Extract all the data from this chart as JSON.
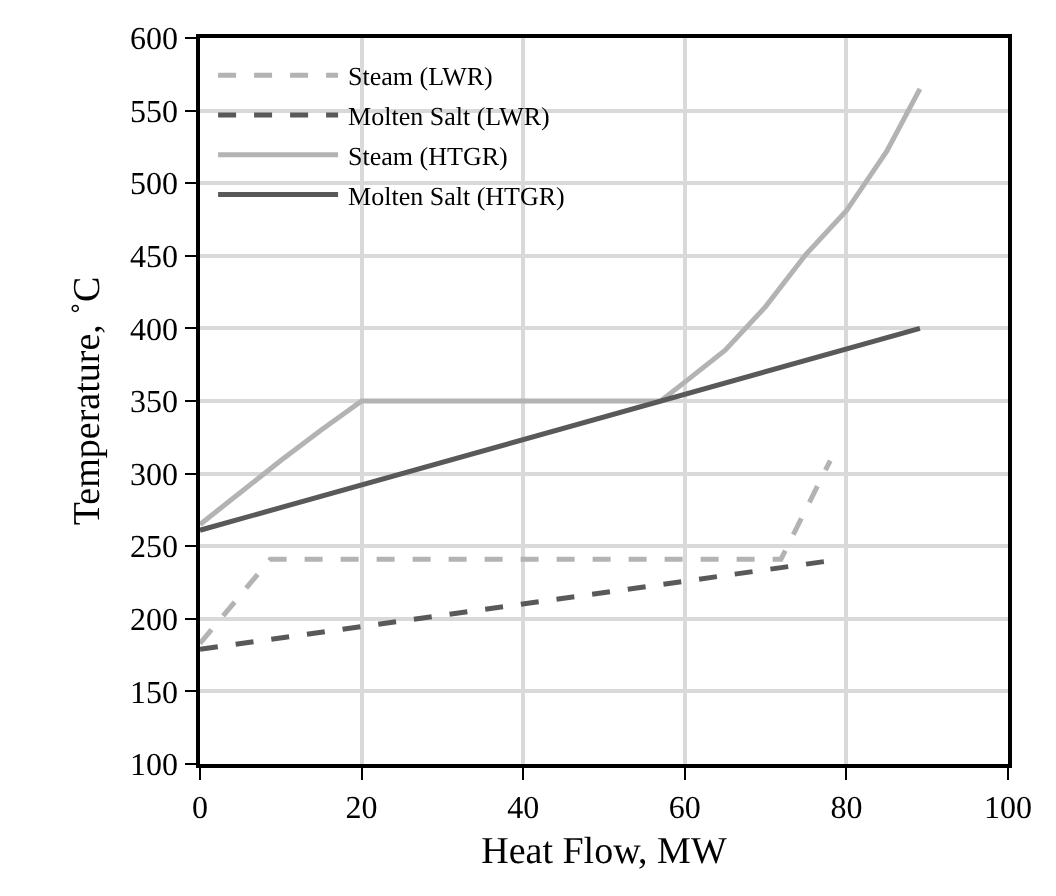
{
  "chart_data": {
    "type": "line",
    "xlabel": "Heat Flow, MW",
    "ylabel": "Temperature, ˚C",
    "xlim": [
      0,
      100
    ],
    "xticks": [
      0,
      20,
      40,
      60,
      80,
      100
    ],
    "ylim": [
      100,
      600
    ],
    "yticks": [
      100,
      150,
      200,
      250,
      300,
      350,
      400,
      450,
      500,
      550,
      600
    ],
    "grid": true,
    "legend": "top left",
    "series": [
      {
        "name": "Steam (LWR)",
        "color": "#b3b3b3",
        "line_style": "dashed",
        "x": [
          0,
          8.7,
          71.9,
          78
        ],
        "values": [
          183,
          241,
          241,
          309
        ]
      },
      {
        "name": "Molten Salt (LWR)",
        "color": "#595959",
        "line_style": "dashed",
        "x": [
          0,
          78
        ],
        "values": [
          179,
          240
        ]
      },
      {
        "name": "Steam (HTGR)",
        "color": "#b3b3b3",
        "line_style": "solid",
        "x": [
          0,
          5,
          10,
          15,
          20,
          40,
          57,
          60,
          65,
          70,
          75,
          80,
          85,
          89.1
        ],
        "values": [
          265,
          287,
          309,
          330,
          350,
          350,
          350,
          363,
          385,
          415,
          451,
          481,
          522,
          565
        ]
      },
      {
        "name": "Molten Salt (HTGR)",
        "color": "#595959",
        "line_style": "solid",
        "x": [
          0,
          89.1
        ],
        "values": [
          261,
          400
        ]
      }
    ]
  }
}
